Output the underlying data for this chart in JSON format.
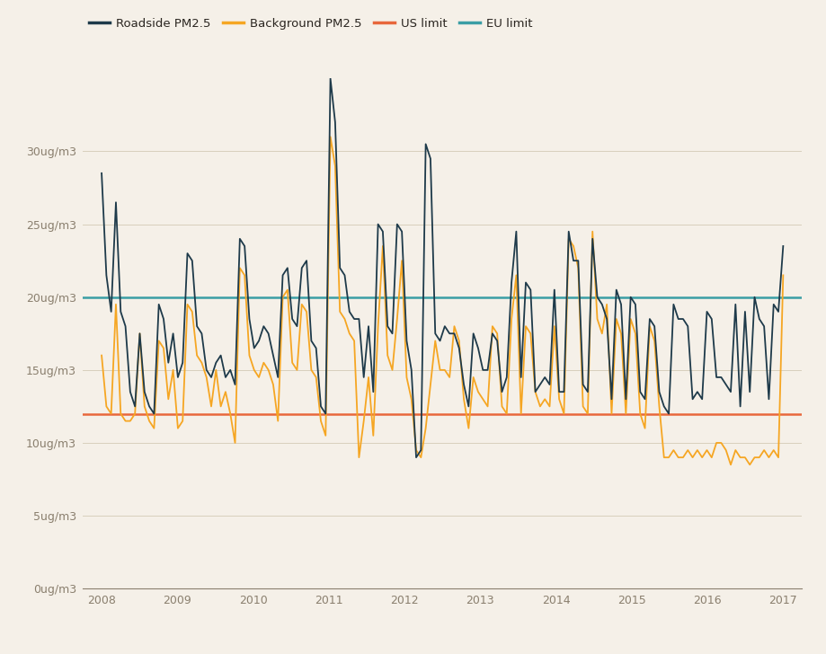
{
  "background_color": "#f5f0e8",
  "roadside_color": "#1e3a4a",
  "background_pm25_color": "#f5a623",
  "us_limit_color": "#e8673c",
  "eu_limit_color": "#3a9ea5",
  "us_limit": 12,
  "eu_limit": 20,
  "ylabel_text": [
    "0ug/m3",
    "5ug/m3",
    "10ug/m3",
    "15ug/m3",
    "20ug/m3",
    "25ug/m3",
    "30ug/m3"
  ],
  "yticks": [
    0,
    5,
    10,
    15,
    20,
    25,
    30
  ],
  "ylim": [
    0,
    35
  ],
  "xlim_start": 2007.75,
  "xlim_end": 2017.25,
  "legend_labels": [
    "Roadside PM2.5",
    "Background PM2.5",
    "US limit",
    "EU limit"
  ],
  "line_width": 1.3,
  "roadside_data": [
    28.5,
    21.5,
    19.0,
    26.5,
    19.0,
    18.0,
    13.5,
    12.5,
    17.5,
    13.5,
    12.5,
    12.0,
    19.5,
    18.5,
    15.5,
    17.5,
    14.5,
    15.5,
    23.0,
    22.5,
    18.0,
    17.5,
    15.0,
    14.5,
    15.5,
    16.0,
    14.5,
    15.0,
    14.0,
    24.0,
    23.5,
    18.5,
    16.5,
    17.0,
    18.0,
    17.5,
    16.0,
    14.5,
    21.5,
    22.0,
    18.5,
    18.0,
    22.0,
    22.5,
    17.0,
    16.5,
    12.5,
    12.0,
    35.0,
    32.0,
    22.0,
    21.5,
    19.0,
    18.5,
    18.5,
    14.5,
    18.0,
    13.5,
    25.0,
    24.5,
    18.0,
    17.5,
    25.0,
    24.5,
    17.0,
    15.0,
    9.0,
    9.5,
    30.5,
    29.5,
    17.5,
    17.0,
    18.0,
    17.5,
    17.5,
    16.5,
    14.0,
    12.5,
    17.5,
    16.5,
    15.0,
    15.0,
    17.5,
    17.0,
    13.5,
    14.5,
    21.0,
    24.5,
    14.5,
    21.0,
    20.5,
    13.5,
    14.0,
    14.5,
    14.0,
    20.5,
    13.5,
    13.5,
    24.5,
    22.5,
    22.5,
    14.0,
    13.5,
    24.0,
    20.0,
    19.5,
    18.5,
    13.0,
    20.5,
    19.5,
    13.0,
    20.0,
    19.5,
    13.5,
    13.0,
    18.5,
    18.0,
    13.5,
    12.5,
    12.0,
    19.5,
    18.5,
    18.5,
    18.0,
    13.0,
    13.5,
    13.0,
    19.0,
    18.5,
    14.5,
    14.5,
    14.0,
    13.5,
    19.5,
    12.5,
    19.0,
    13.5,
    20.0,
    18.5,
    18.0,
    13.0,
    19.5,
    19.0,
    23.5
  ],
  "background_data": [
    16.0,
    12.5,
    12.0,
    19.5,
    12.0,
    11.5,
    11.5,
    12.0,
    17.5,
    12.5,
    11.5,
    11.0,
    17.0,
    16.5,
    13.0,
    15.0,
    11.0,
    11.5,
    19.5,
    19.0,
    16.0,
    15.5,
    14.5,
    12.5,
    15.0,
    12.5,
    13.5,
    12.0,
    10.0,
    22.0,
    21.5,
    16.0,
    15.0,
    14.5,
    15.5,
    15.0,
    14.0,
    11.5,
    20.0,
    20.5,
    15.5,
    15.0,
    19.5,
    19.0,
    15.0,
    14.5,
    11.5,
    10.5,
    31.0,
    29.0,
    19.0,
    18.5,
    17.5,
    17.0,
    9.0,
    11.5,
    14.5,
    10.5,
    18.0,
    23.5,
    16.0,
    15.0,
    18.5,
    22.5,
    14.5,
    13.0,
    9.5,
    9.0,
    11.0,
    14.0,
    17.0,
    15.0,
    15.0,
    14.5,
    18.0,
    17.0,
    13.0,
    11.0,
    14.5,
    13.5,
    13.0,
    12.5,
    18.0,
    17.5,
    12.5,
    12.0,
    18.5,
    21.5,
    12.0,
    18.0,
    17.5,
    13.5,
    12.5,
    13.0,
    12.5,
    18.0,
    13.0,
    12.0,
    24.0,
    23.5,
    22.0,
    12.5,
    12.0,
    24.5,
    18.5,
    17.5,
    19.5,
    12.0,
    18.5,
    17.5,
    12.0,
    18.5,
    17.5,
    12.0,
    11.0,
    18.0,
    17.0,
    12.5,
    9.0,
    9.0,
    9.5,
    9.0,
    9.0,
    9.5,
    9.0,
    9.5,
    9.0,
    9.5,
    9.0,
    10.0,
    10.0,
    9.5,
    8.5,
    9.5,
    9.0,
    9.0,
    8.5,
    9.0,
    9.0,
    9.5,
    9.0,
    9.5,
    9.0,
    21.5
  ]
}
